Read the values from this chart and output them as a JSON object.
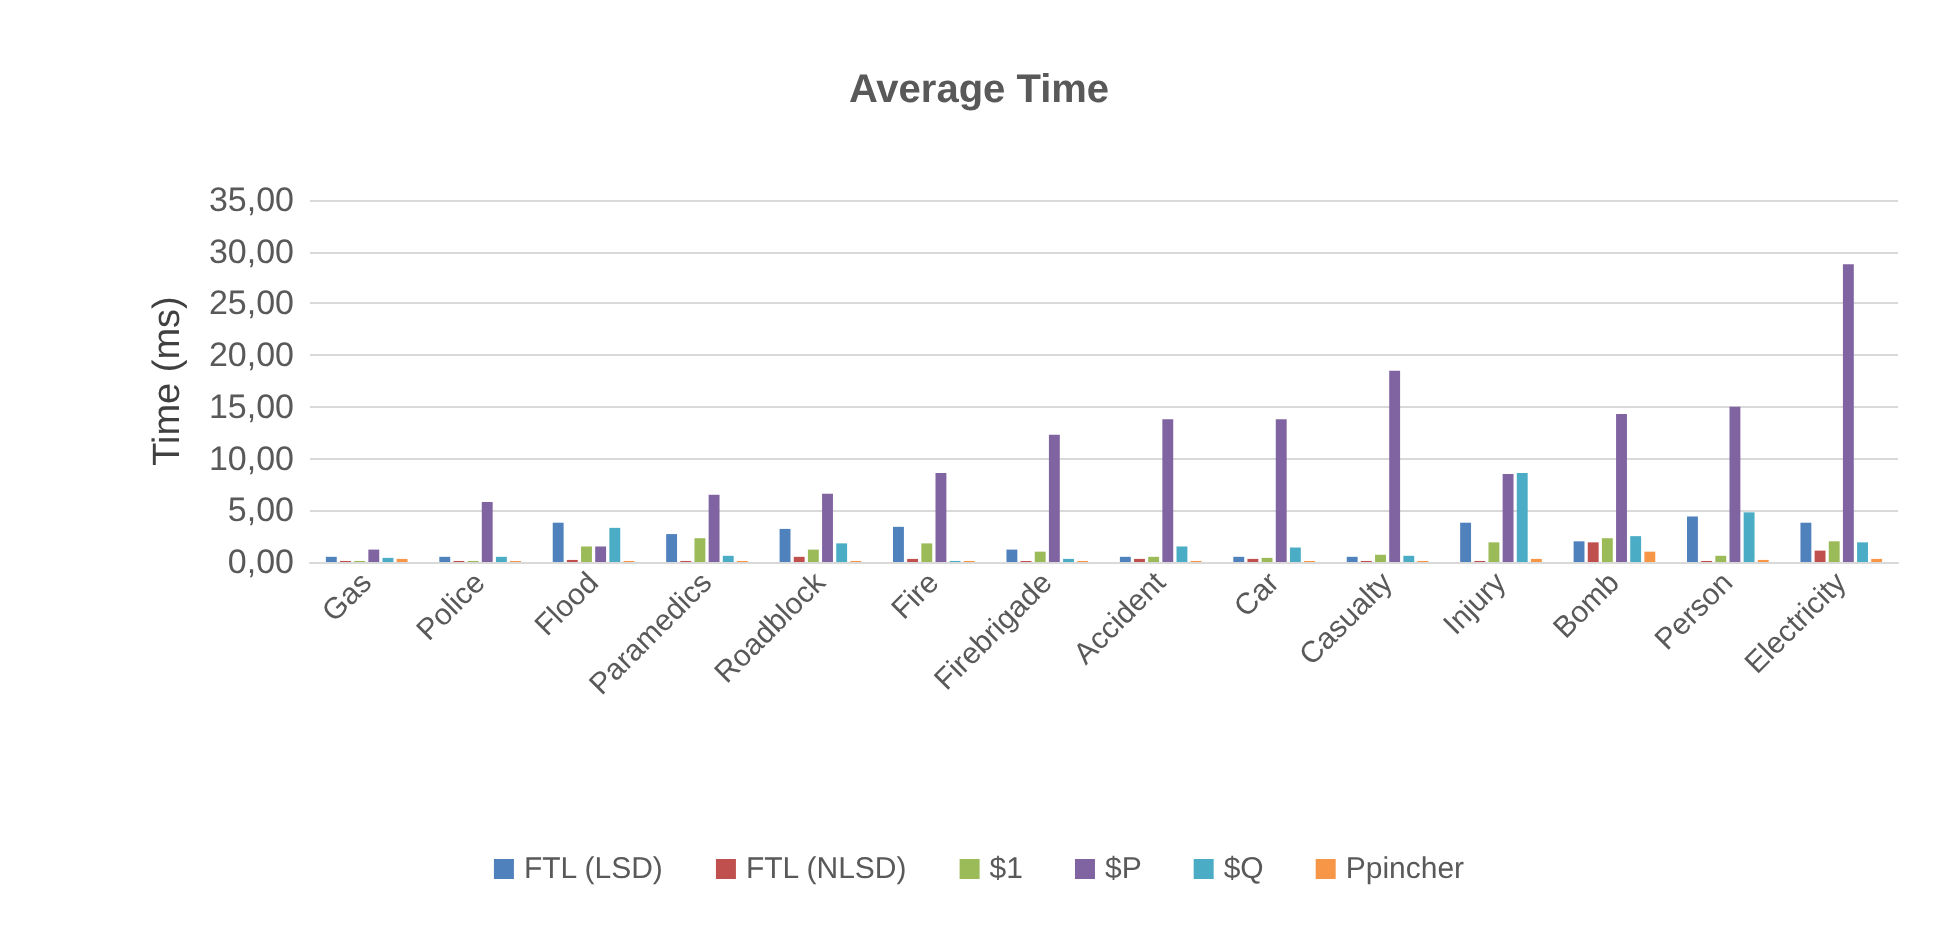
{
  "chart_data": {
    "type": "bar",
    "title": "Average Time",
    "ylabel": "Time (ms)",
    "categories": [
      "Gas",
      "Police",
      "Flood",
      "Paramedics",
      "Roadblock",
      "Fire",
      "Firebrigade",
      "Accident",
      "Car",
      "Casualty",
      "Injury",
      "Bomb",
      "Person",
      "Electricity"
    ],
    "series": [
      {
        "name": "FTL (LSD)",
        "color": "#4f81bd",
        "values": [
          0.5,
          0.5,
          3.8,
          2.7,
          3.2,
          3.4,
          1.2,
          0.5,
          0.5,
          0.5,
          3.8,
          2.0,
          4.4,
          3.8
        ]
      },
      {
        "name": "FTL (NLSD)",
        "color": "#c0504d",
        "values": [
          0.1,
          0.1,
          0.2,
          0.1,
          0.5,
          0.3,
          0.1,
          0.3,
          0.3,
          0.1,
          0.1,
          1.9,
          0.1,
          1.1
        ]
      },
      {
        "name": "$1",
        "color": "#9bbb59",
        "values": [
          0.1,
          0.1,
          1.5,
          2.3,
          1.2,
          1.8,
          1.0,
          0.5,
          0.4,
          0.7,
          1.9,
          2.3,
          0.6,
          2.0
        ]
      },
      {
        "name": "$P",
        "color": "#8064a2",
        "values": [
          1.2,
          5.8,
          1.5,
          6.5,
          6.6,
          8.6,
          12.3,
          13.8,
          13.8,
          18.5,
          8.5,
          14.3,
          15.0,
          28.8
        ]
      },
      {
        "name": "$Q",
        "color": "#4bacc6",
        "values": [
          0.4,
          0.5,
          3.3,
          0.6,
          1.8,
          0.1,
          0.3,
          1.5,
          1.4,
          0.6,
          8.6,
          2.5,
          4.8,
          1.9
        ]
      },
      {
        "name": "Ppincher",
        "color": "#f79646",
        "values": [
          0.3,
          0.1,
          0.1,
          0.1,
          0.1,
          0.1,
          0.1,
          0.1,
          0.1,
          0.1,
          0.3,
          1.0,
          0.2,
          0.3
        ]
      }
    ],
    "ylim": [
      0,
      35
    ],
    "yticks": [
      {
        "value": 0,
        "label": "0,00"
      },
      {
        "value": 5,
        "label": "5,00"
      },
      {
        "value": 10,
        "label": "10,00"
      },
      {
        "value": 15,
        "label": "15,00"
      },
      {
        "value": 20,
        "label": "20,00"
      },
      {
        "value": 25,
        "label": "25,00"
      },
      {
        "value": 30,
        "label": "30,00"
      },
      {
        "value": 35,
        "label": "35,00"
      }
    ],
    "grid": "y",
    "legend": "bottom"
  }
}
